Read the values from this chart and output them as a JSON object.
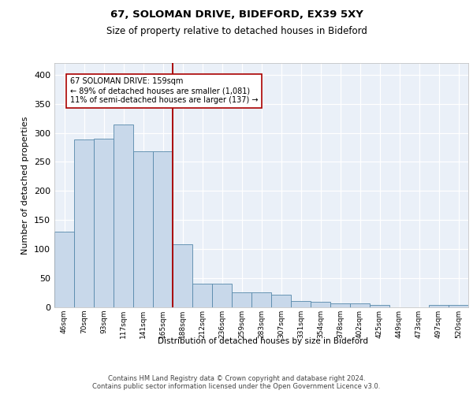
{
  "title1": "67, SOLOMAN DRIVE, BIDEFORD, EX39 5XY",
  "title2": "Size of property relative to detached houses in Bideford",
  "xlabel": "Distribution of detached houses by size in Bideford",
  "ylabel": "Number of detached properties",
  "bar_labels": [
    "46sqm",
    "70sqm",
    "93sqm",
    "117sqm",
    "141sqm",
    "165sqm",
    "188sqm",
    "212sqm",
    "236sqm",
    "259sqm",
    "283sqm",
    "307sqm",
    "331sqm",
    "354sqm",
    "378sqm",
    "402sqm",
    "425sqm",
    "449sqm",
    "473sqm",
    "497sqm",
    "520sqm"
  ],
  "bar_values": [
    130,
    288,
    290,
    315,
    268,
    268,
    108,
    40,
    40,
    26,
    26,
    22,
    11,
    9,
    7,
    7,
    4,
    0,
    0,
    4,
    4
  ],
  "bar_color": "#c8d8ea",
  "bar_edge_color": "#5588aa",
  "vline_x_bar_idx": 5,
  "vline_color": "#aa0000",
  "annotation_text": "67 SOLOMAN DRIVE: 159sqm\n← 89% of detached houses are smaller (1,081)\n11% of semi-detached houses are larger (137) →",
  "ylim": [
    0,
    420
  ],
  "yticks": [
    0,
    50,
    100,
    150,
    200,
    250,
    300,
    350,
    400
  ],
  "bg_color": "#eaf0f8",
  "footer_line1": "Contains HM Land Registry data © Crown copyright and database right 2024.",
  "footer_line2": "Contains public sector information licensed under the Open Government Licence v3.0."
}
